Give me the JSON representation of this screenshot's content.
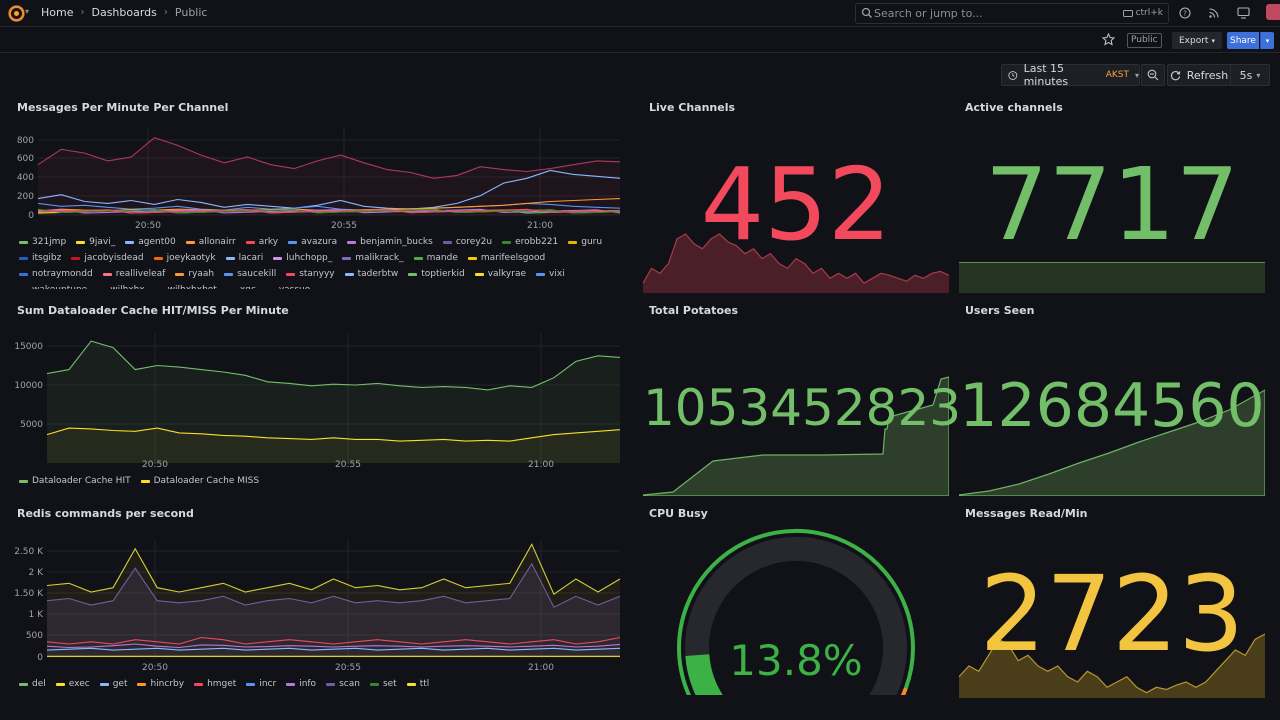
{
  "breadcrumb": {
    "home": "Home",
    "dashboards": "Dashboards",
    "current": "Public"
  },
  "search": {
    "placeholder": "Search or jump to...",
    "shortcut": "ctrl+k"
  },
  "toolbar": {
    "public_badge": "Public",
    "export_label": "Export",
    "share_label": "Share"
  },
  "time": {
    "range_label": "Last 15 minutes",
    "timezone": "AKST",
    "refresh_label": "Refresh",
    "interval": "5s"
  },
  "colors": {
    "red": "#f2495c",
    "green": "#73bf69",
    "yellow": "#fade2a",
    "orange_yellow": "#f2c440"
  },
  "panels": {
    "messages_per_minute": {
      "title": "Messages Per Minute Per Channel",
      "y_ticks": [
        "800",
        "600",
        "400",
        "200",
        "0"
      ],
      "x_ticks": [
        "20:50",
        "20:55",
        "21:00"
      ],
      "legend": [
        {
          "name": "321jmp",
          "color": "#73bf69"
        },
        {
          "name": "9javi_",
          "color": "#fade2a"
        },
        {
          "name": "agent00",
          "color": "#8ab8ff"
        },
        {
          "name": "allonairr",
          "color": "#ff9830"
        },
        {
          "name": "arky",
          "color": "#f2495c"
        },
        {
          "name": "avazura",
          "color": "#5794f2"
        },
        {
          "name": "benjamin_bucks",
          "color": "#b877d9"
        },
        {
          "name": "corey2u",
          "color": "#705da0"
        },
        {
          "name": "erobb221",
          "color": "#37872d"
        },
        {
          "name": "guru",
          "color": "#e0b400"
        },
        {
          "name": "itsgibz",
          "color": "#1f60c4"
        },
        {
          "name": "jacobyisdead",
          "color": "#c4162a"
        },
        {
          "name": "joeykaotyk",
          "color": "#fa6400"
        },
        {
          "name": "lacari",
          "color": "#8ab8ff"
        },
        {
          "name": "luhchopp_",
          "color": "#ca95e5"
        },
        {
          "name": "malikrack_",
          "color": "#7c6bbf"
        },
        {
          "name": "mande",
          "color": "#56a64b"
        },
        {
          "name": "marifeelsgood",
          "color": "#f2cc0c"
        },
        {
          "name": "notraymondd",
          "color": "#3274d9"
        },
        {
          "name": "realliveleaf",
          "color": "#ff7383"
        },
        {
          "name": "ryaah",
          "color": "#ff9830"
        },
        {
          "name": "saucekill",
          "color": "#5794f2"
        },
        {
          "name": "stanyyy",
          "color": "#f2495c"
        },
        {
          "name": "taderbtw",
          "color": "#8ab8ff"
        },
        {
          "name": "toptierkid",
          "color": "#73bf69"
        },
        {
          "name": "valkyrae",
          "color": "#fade2a"
        },
        {
          "name": "vixi",
          "color": "#5794f2"
        },
        {
          "name": "wakeuptune",
          "color": "#ff9830"
        },
        {
          "name": "wilhxhx",
          "color": "#c4162a"
        },
        {
          "name": "wilhxhxbot",
          "color": "#8ab8ff"
        },
        {
          "name": "xqc",
          "color": "#b877d9"
        },
        {
          "name": "yassuo",
          "color": "#705da0"
        }
      ]
    },
    "dataloader": {
      "title": "Sum Dataloader Cache HIT/MISS Per Minute",
      "y_ticks": [
        "15000",
        "10000",
        "5000"
      ],
      "x_ticks": [
        "20:50",
        "20:55",
        "21:00"
      ],
      "legend": [
        {
          "name": "Dataloader Cache HIT",
          "color": "#73bf69"
        },
        {
          "name": "Dataloader Cache MISS",
          "color": "#fade2a"
        }
      ]
    },
    "redis": {
      "title": "Redis commands per second",
      "y_ticks": [
        "2.50 K",
        "2 K",
        "1.50 K",
        "1 K",
        "500",
        "0"
      ],
      "x_ticks": [
        "20:50",
        "20:55",
        "21:00"
      ],
      "legend": [
        {
          "name": "del",
          "color": "#73bf69"
        },
        {
          "name": "exec",
          "color": "#fade2a"
        },
        {
          "name": "get",
          "color": "#8ab8ff"
        },
        {
          "name": "hincrby",
          "color": "#ff9830"
        },
        {
          "name": "hmget",
          "color": "#f2495c"
        },
        {
          "name": "incr",
          "color": "#5794f2"
        },
        {
          "name": "info",
          "color": "#b877d9"
        },
        {
          "name": "scan",
          "color": "#705da0"
        },
        {
          "name": "set",
          "color": "#37872d"
        },
        {
          "name": "ttl",
          "color": "#fade2a"
        }
      ]
    },
    "live_channels": {
      "title": "Live Channels",
      "value": "452"
    },
    "active_channels": {
      "title": "Active channels",
      "value": "7717"
    },
    "total_potatoes": {
      "title": "Total Potatoes",
      "value": "1053452823"
    },
    "users_seen": {
      "title": "Users Seen",
      "value": "12684560"
    },
    "cpu_busy": {
      "title": "CPU Busy",
      "value": "13.8%",
      "percent": 13.8
    },
    "messages_read": {
      "title": "Messages Read/Min",
      "value": "2723"
    }
  },
  "chart_data": [
    {
      "type": "line",
      "title": "Messages Per Minute Per Channel",
      "ylim": [
        0,
        900
      ],
      "series": [
        {
          "name": "arky",
          "values": [
            520,
            680,
            640,
            560,
            600,
            800,
            720,
            620,
            540,
            600,
            520,
            480,
            560,
            620,
            540,
            470,
            440,
            380,
            410,
            500,
            470,
            450,
            480,
            520,
            560,
            550
          ]
        },
        {
          "name": "agent00",
          "values": [
            170,
            210,
            140,
            120,
            150,
            110,
            160,
            130,
            80,
            110,
            90,
            70,
            100,
            150,
            90,
            70,
            60,
            80,
            120,
            200,
            330,
            380,
            460,
            420,
            400,
            380
          ]
        },
        {
          "name": "avazura",
          "values": [
            120,
            90,
            100,
            80,
            60,
            70,
            90,
            60,
            50,
            80,
            60,
            70,
            90,
            60,
            50,
            50,
            60,
            70,
            80,
            90,
            100,
            120,
            110,
            90,
            80,
            70
          ]
        },
        {
          "name": "allonairr",
          "values": [
            40,
            60,
            50,
            45,
            55,
            50,
            60,
            55,
            45,
            50,
            55,
            60,
            50,
            45,
            55,
            60,
            65,
            70,
            80,
            90,
            100,
            120,
            140,
            150,
            160,
            170
          ]
        }
      ]
    },
    {
      "type": "area",
      "title": "Sum Dataloader Cache HIT/MISS Per Minute",
      "ylim": [
        0,
        16000
      ],
      "series": [
        {
          "name": "Dataloader Cache HIT",
          "values": [
            11000,
            11500,
            15000,
            14200,
            11500,
            12000,
            11800,
            11500,
            11200,
            10800,
            10000,
            9800,
            9500,
            9700,
            9600,
            9800,
            9500,
            9300,
            9400,
            9300,
            9000,
            9500,
            9300,
            10500,
            12500,
            13200,
            13000
          ]
        },
        {
          "name": "Dataloader Cache MISS",
          "values": [
            3500,
            4300,
            4200,
            4000,
            3900,
            4300,
            3700,
            3600,
            3400,
            3300,
            3100,
            3000,
            2900,
            3100,
            2900,
            2900,
            2700,
            2800,
            2900,
            2700,
            2800,
            2700,
            3100,
            3500,
            3700,
            3900,
            4100
          ]
        }
      ]
    },
    {
      "type": "line",
      "title": "Redis commands per second",
      "ylim": [
        0,
        2700
      ],
      "series": [
        {
          "name": "exec",
          "values": [
            1650,
            1700,
            1500,
            1600,
            2500,
            1600,
            1500,
            1600,
            1700,
            1500,
            1600,
            1700,
            1550,
            1800,
            1600,
            1650,
            1550,
            1600,
            1800,
            1600,
            1650,
            1700,
            2600,
            1450,
            1800,
            1500,
            1800
          ]
        },
        {
          "name": "scan",
          "values": [
            1300,
            1350,
            1200,
            1300,
            2050,
            1300,
            1250,
            1300,
            1400,
            1200,
            1300,
            1350,
            1250,
            1400,
            1250,
            1300,
            1250,
            1300,
            1400,
            1250,
            1300,
            1350,
            2150,
            1150,
            1400,
            1200,
            1400
          ]
        },
        {
          "name": "hmget",
          "values": [
            350,
            300,
            350,
            300,
            400,
            350,
            300,
            450,
            400,
            300,
            350,
            400,
            350,
            300,
            350,
            400,
            350,
            300,
            350,
            400,
            350,
            300,
            350,
            400,
            300,
            350,
            450
          ]
        },
        {
          "name": "info",
          "values": [
            250,
            220,
            230,
            260,
            300,
            250,
            220,
            280,
            270,
            230,
            240,
            260,
            250,
            230,
            250,
            260,
            250,
            230,
            250,
            260,
            250,
            230,
            250,
            270,
            230,
            250,
            290
          ]
        }
      ]
    },
    {
      "type": "area",
      "title": "Live Channels",
      "series": [
        {
          "name": "Live Channels",
          "values": [
            10,
            25,
            20,
            30,
            55,
            60,
            50,
            45,
            55,
            60,
            52,
            48,
            40,
            45,
            35,
            40,
            30,
            25,
            35,
            30,
            20,
            25,
            15,
            20,
            15,
            20,
            10,
            15,
            20,
            18,
            15,
            12,
            18,
            15,
            20,
            22,
            18
          ]
        }
      ]
    },
    {
      "type": "area",
      "title": "Messages Read/Min",
      "series": [
        {
          "name": "Messages Read/Min",
          "values": [
            20,
            30,
            25,
            40,
            55,
            50,
            35,
            40,
            30,
            25,
            30,
            20,
            15,
            25,
            20,
            10,
            15,
            20,
            10,
            5,
            10,
            8,
            12,
            15,
            10,
            15,
            25,
            35,
            45,
            40,
            55,
            60
          ]
        }
      ]
    }
  ]
}
